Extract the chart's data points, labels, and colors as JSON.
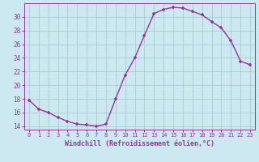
{
  "x": [
    0,
    1,
    2,
    3,
    4,
    5,
    6,
    7,
    8,
    9,
    10,
    11,
    12,
    13,
    14,
    15,
    16,
    17,
    18,
    19,
    20,
    21,
    22,
    23
  ],
  "y": [
    17.8,
    16.5,
    16.0,
    15.3,
    14.7,
    14.3,
    14.2,
    14.0,
    14.3,
    18.0,
    21.5,
    24.0,
    27.3,
    30.5,
    31.1,
    31.4,
    31.3,
    30.8,
    30.3,
    29.3,
    28.4,
    26.5,
    23.5,
    23.0
  ],
  "line_color": "#993399",
  "marker": "+",
  "bg_color": "#cce8f0",
  "grid_color": "#aacccc",
  "xlabel": "Windchill (Refroidissement éolien,°C)",
  "xlabel_color": "#993399",
  "tick_color": "#993399",
  "xlim": [
    -0.5,
    23.5
  ],
  "ylim": [
    13.5,
    32
  ],
  "yticks": [
    14,
    16,
    18,
    20,
    22,
    24,
    26,
    28,
    30
  ],
  "xticks": [
    0,
    1,
    2,
    3,
    4,
    5,
    6,
    7,
    8,
    9,
    10,
    11,
    12,
    13,
    14,
    15,
    16,
    17,
    18,
    19,
    20,
    21,
    22,
    23
  ]
}
